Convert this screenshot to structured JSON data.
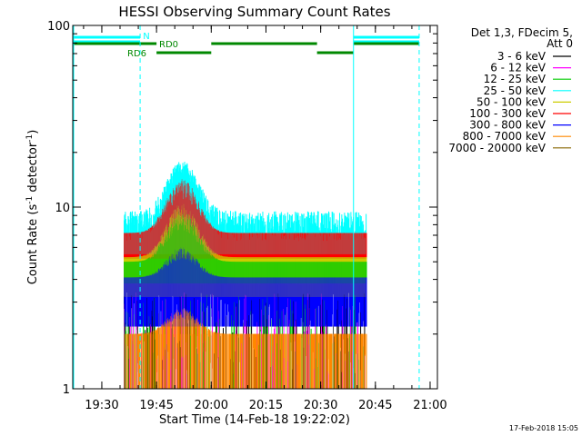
{
  "chart_data": {
    "type": "line",
    "title": "HESSI Observing Summary Count Rates",
    "xlabel": "Start Time (14-Feb-18 19:22:02)",
    "ylabel_main": "Count Rate (s",
    "ylabel_sup1": "-1",
    "ylabel_mid": " detector",
    "ylabel_sup2": "-1",
    "ylabel_end": ")",
    "x_range": [
      "19:22:02",
      "21:02:00"
    ],
    "y_scale": "log",
    "ylim": [
      1,
      100
    ],
    "x_ticks": [
      "19:30",
      "19:45",
      "20:00",
      "20:15",
      "20:30",
      "20:45",
      "21:00"
    ],
    "y_ticks": [
      "1",
      "10",
      "100"
    ],
    "legend": {
      "header": [
        "Det 1,3, FDecim 5,",
        "Att 0"
      ],
      "placement": "right"
    },
    "series": [
      {
        "name": "3 - 6 keV",
        "color": "#000000",
        "levels": [
          1,
          2
        ]
      },
      {
        "name": "6 - 12 keV",
        "color": "#ff00ff",
        "levels": [
          1,
          2.6
        ]
      },
      {
        "name": "12 - 25 keV",
        "color": "#00cc00",
        "levels": [
          1,
          2.6
        ]
      },
      {
        "name": "25 - 50 keV",
        "color": "#00ffff",
        "levels": [
          6,
          10
        ]
      },
      {
        "name": "50 - 100 keV",
        "color": "#cccc00",
        "levels": [
          3,
          5
        ]
      },
      {
        "name": "100 - 300 keV",
        "color": "#ff0000",
        "levels": [
          5,
          7
        ]
      },
      {
        "name": "300 - 800 keV",
        "color": "#0000ff",
        "levels": [
          3,
          4
        ]
      },
      {
        "name": "800 - 7000 keV",
        "color": "#ff8800",
        "levels": [
          1,
          2
        ]
      },
      {
        "name": "7000 - 20000 keV",
        "color": "#886600",
        "levels": [
          1,
          1
        ]
      }
    ],
    "data_interval": [
      "19:36:00",
      "20:42:30"
    ],
    "flare_peak_time": "19:52:00",
    "flags": [
      {
        "label": "N",
        "color": "#00ffff",
        "segments": [
          [
            "19:22:02",
            "19:40:30"
          ],
          [
            "20:39:00",
            "20:57:00"
          ]
        ]
      },
      {
        "label": "RD0",
        "color": "#008800",
        "segments": [
          [
            "19:22:02",
            "19:45:00"
          ],
          [
            "20:00:00",
            "20:29:00"
          ],
          [
            "20:39:00",
            "20:57:00"
          ]
        ]
      },
      {
        "label": "RD6",
        "color": "#008800",
        "segments": [
          [
            "19:45:00",
            "20:00:00"
          ],
          [
            "20:29:00",
            "20:39:00"
          ]
        ]
      }
    ],
    "markers": [
      {
        "time": "19:40:30",
        "color": "#00ffff",
        "style": "dashed"
      },
      {
        "time": "20:39:00",
        "color": "#00ffff",
        "style": "solid"
      },
      {
        "time": "20:57:00",
        "color": "#00ffff",
        "style": "dashed"
      }
    ]
  },
  "footer": {
    "timestamp": "17-Feb-2018 15:05"
  }
}
